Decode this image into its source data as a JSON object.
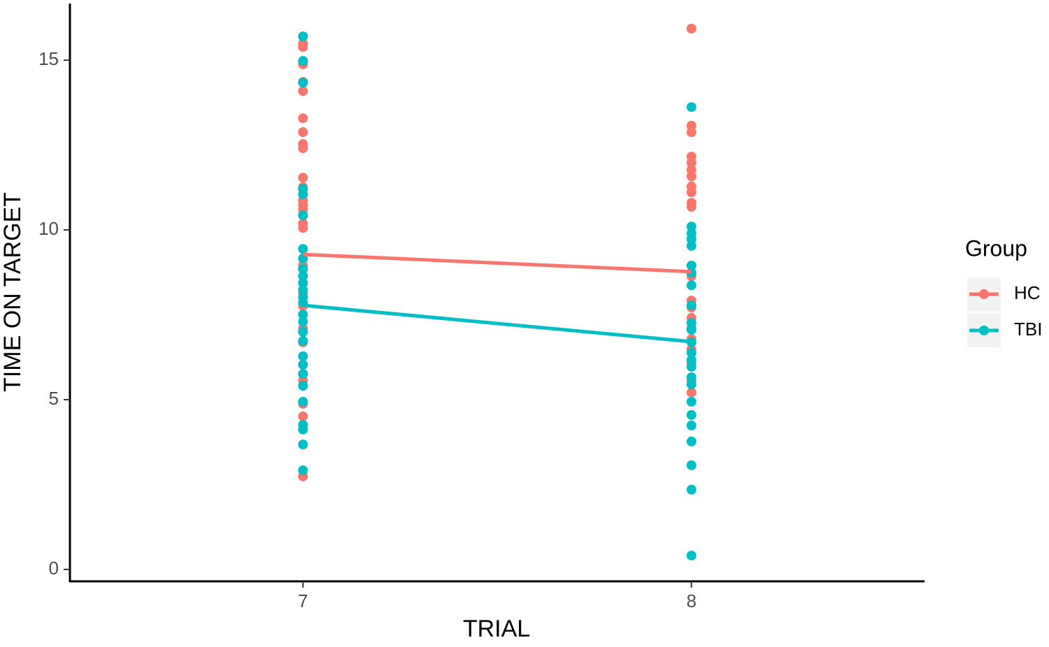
{
  "chart_data": {
    "type": "scatter",
    "x_label": "TRIAL",
    "y_label": "TIME ON TARGET",
    "xlim": [
      6.4,
      8.6
    ],
    "xticks": [
      7,
      8
    ],
    "ylim": [
      -0.35,
      16.67
    ],
    "yticks": [
      0,
      5,
      10,
      15
    ],
    "grid": false,
    "legend_title": "Group",
    "legend_position": "right",
    "series": [
      {
        "name": "HC",
        "color": "#f8766d",
        "x": [
          7,
          7,
          7,
          7,
          7,
          7,
          7,
          7,
          7,
          7,
          7,
          7,
          7,
          7,
          7,
          7,
          7,
          7,
          7,
          7,
          7,
          7,
          7,
          7,
          7,
          8,
          8,
          8,
          8,
          8,
          8,
          8,
          8,
          8,
          8,
          8,
          8,
          8,
          8,
          8,
          8,
          8,
          8,
          8,
          8,
          8,
          8
        ],
        "values": [
          15.39,
          15.49,
          14.88,
          14.36,
          14.09,
          13.29,
          12.88,
          12.53,
          12.41,
          11.54,
          11.26,
          10.87,
          10.74,
          10.6,
          10.19,
          10.06,
          8.95,
          8.13,
          7.76,
          7.1,
          6.69,
          5.56,
          4.88,
          4.51,
          2.74,
          15.93,
          13.07,
          12.88,
          12.16,
          11.98,
          11.77,
          11.58,
          11.28,
          11.11,
          10.8,
          10.68,
          8.95,
          8.64,
          7.92,
          7.72,
          7.41,
          7.1,
          6.79,
          6.48,
          6.07,
          5.56,
          5.21
        ],
        "line_x": [
          7,
          8
        ],
        "line_values": [
          9.28,
          8.77
        ]
      },
      {
        "name": "TBI",
        "color": "#00bfc4",
        "x": [
          7,
          7,
          7,
          7,
          7,
          7,
          7,
          7,
          7,
          7,
          7,
          7,
          7,
          7,
          7,
          7,
          7,
          7,
          7,
          7,
          7,
          7,
          7,
          7,
          7,
          7,
          7,
          8,
          8,
          8,
          8,
          8,
          8,
          8,
          8,
          8,
          8,
          8,
          8,
          8,
          8,
          8,
          8,
          8,
          8,
          8,
          8,
          8,
          8,
          8,
          8
        ],
        "values": [
          15.7,
          14.98,
          14.34,
          11.21,
          11.05,
          10.43,
          9.44,
          9.16,
          8.85,
          8.64,
          8.44,
          8.23,
          8.02,
          7.86,
          7.51,
          7.3,
          7.0,
          6.73,
          6.28,
          6.03,
          5.76,
          5.41,
          4.94,
          4.26,
          4.12,
          3.68,
          2.92,
          13.62,
          10.1,
          9.9,
          9.73,
          9.53,
          8.95,
          8.74,
          8.37,
          7.78,
          7.26,
          7.06,
          6.69,
          6.38,
          6.17,
          5.97,
          5.66,
          5.45,
          4.94,
          4.55,
          4.24,
          3.77,
          3.07,
          2.35,
          0.41
        ],
        "line_x": [
          7,
          8
        ],
        "line_values": [
          7.78,
          6.71
        ]
      }
    ]
  }
}
